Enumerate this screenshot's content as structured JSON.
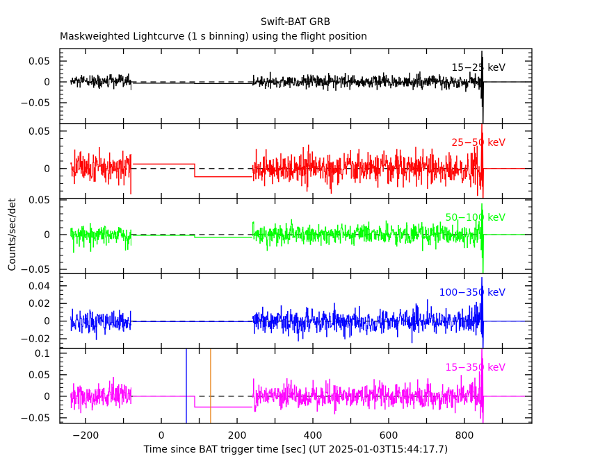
{
  "chart_data": {
    "type": "line",
    "title": "Swift-BAT GRB",
    "subtitle": "Maskweighted Lightcurve (1 s binning) using the flight position",
    "xlabel": "Time since BAT trigger time [sec] (UT 2025-01-03T15:44:17.7)",
    "ylabel": "Counts/sec/det",
    "xlim": [
      -268,
      978
    ],
    "xticks": [
      -200,
      0,
      200,
      400,
      600,
      800
    ],
    "xtick_labels": [
      "−200",
      "0",
      "200",
      "400",
      "600",
      "800"
    ],
    "grid": false,
    "panels": [
      {
        "name": "15-25 keV",
        "label": "15−25 keV",
        "color": "#000000",
        "ylim": [
          -0.1,
          0.08
        ],
        "yticks": [
          0.05,
          0,
          -0.05
        ],
        "ytick_labels": [
          "0.05",
          "0",
          "−0.05"
        ],
        "noise_sd": 0.008,
        "steps": [
          [
            -75,
            88,
            -0.003
          ],
          [
            88,
            240,
            -0.004
          ]
        ],
        "spike": [
          0.075,
          -0.1
        ]
      },
      {
        "name": "25-50 keV",
        "label": "25−50 keV",
        "color": "#ff0000",
        "ylim": [
          -0.04,
          0.06
        ],
        "yticks": [
          0.05,
          0
        ],
        "ytick_labels": [
          "0.05",
          "0"
        ],
        "noise_sd": 0.011,
        "steps": [
          [
            -75,
            88,
            0.006
          ],
          [
            88,
            240,
            -0.011
          ]
        ],
        "spike": [
          0.06,
          -0.04
        ]
      },
      {
        "name": "50-100 keV",
        "label": "50−100 keV",
        "color": "#00ff00",
        "ylim": [
          -0.056,
          0.052
        ],
        "yticks": [
          0.05,
          0,
          -0.05
        ],
        "ytick_labels": [
          "0.05",
          "0",
          "−0.05"
        ],
        "noise_sd": 0.008,
        "steps": [
          [
            -75,
            88,
            -0.001
          ],
          [
            88,
            240,
            -0.004
          ]
        ],
        "spike": [
          0.045,
          -0.056
        ]
      },
      {
        "name": "100-350 keV",
        "label": "100−350 keV",
        "color": "#0000ff",
        "ylim": [
          -0.031,
          0.054
        ],
        "yticks": [
          0.04,
          0.02,
          0,
          -0.02
        ],
        "ytick_labels": [
          "0.04",
          "0.02",
          "0",
          "−0.02"
        ],
        "noise_sd": 0.007,
        "steps": [
          [
            -75,
            88,
            -0.0005
          ],
          [
            88,
            240,
            -0.0005
          ]
        ],
        "spike": [
          0.05,
          -0.031
        ]
      },
      {
        "name": "15-350 keV",
        "label": "15−350 keV",
        "color": "#ff00ff",
        "ylim": [
          -0.063,
          0.111
        ],
        "yticks": [
          0.1,
          0.05,
          0,
          -0.05
        ],
        "ytick_labels": [
          "0.1",
          "0.05",
          "0",
          "−0.05"
        ],
        "noise_sd": 0.015,
        "steps": [
          [
            -75,
            88,
            0.0
          ],
          [
            88,
            240,
            -0.025
          ]
        ],
        "spike": [
          0.11,
          -0.063
        ],
        "vlines": [
          {
            "x": 66,
            "color": "#0000ff"
          },
          {
            "x": 130,
            "color": "#e8871e"
          }
        ]
      }
    ],
    "noise_segments": [
      [
        -240,
        -80
      ],
      [
        240,
        845
      ]
    ],
    "burst_time": 848
  }
}
